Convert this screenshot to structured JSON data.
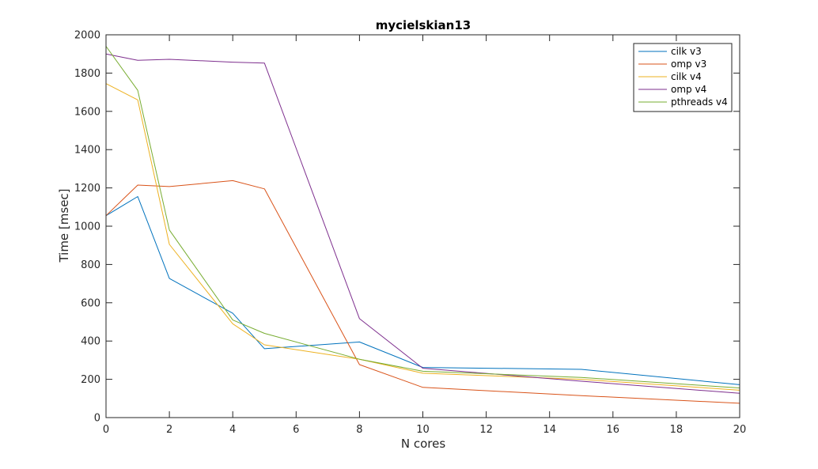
{
  "chart_data": {
    "type": "line",
    "title": "mycielskian13",
    "xlabel": "N cores",
    "ylabel": "Time [msec]",
    "xlim": [
      0,
      20
    ],
    "ylim": [
      0,
      2000
    ],
    "xticks": [
      0,
      2,
      4,
      6,
      8,
      10,
      12,
      14,
      16,
      18,
      20
    ],
    "yticks": [
      0,
      200,
      400,
      600,
      800,
      1000,
      1200,
      1400,
      1600,
      1800,
      2000
    ],
    "grid": false,
    "legend_position": "top-right",
    "x": [
      0,
      1,
      2,
      4,
      5,
      8,
      10,
      15,
      20
    ],
    "series": [
      {
        "name": "cilk v3",
        "color": "#0072BD",
        "values": [
          1055,
          1155,
          727,
          545,
          360,
          395,
          262,
          252,
          172
        ]
      },
      {
        "name": "omp v3",
        "color": "#D95319",
        "values": [
          1055,
          1215,
          1207,
          1238,
          1195,
          277,
          158,
          115,
          75
        ]
      },
      {
        "name": "cilk v4",
        "color": "#EDB120",
        "values": [
          1745,
          1660,
          905,
          490,
          380,
          305,
          232,
          200,
          143
        ]
      },
      {
        "name": "omp v4",
        "color": "#7E2F8E",
        "values": [
          1900,
          1867,
          1872,
          1857,
          1852,
          517,
          258,
          190,
          127
        ]
      },
      {
        "name": "pthreads v4",
        "color": "#77AC30",
        "values": [
          1940,
          1710,
          980,
          510,
          440,
          305,
          242,
          210,
          155
        ]
      }
    ]
  }
}
